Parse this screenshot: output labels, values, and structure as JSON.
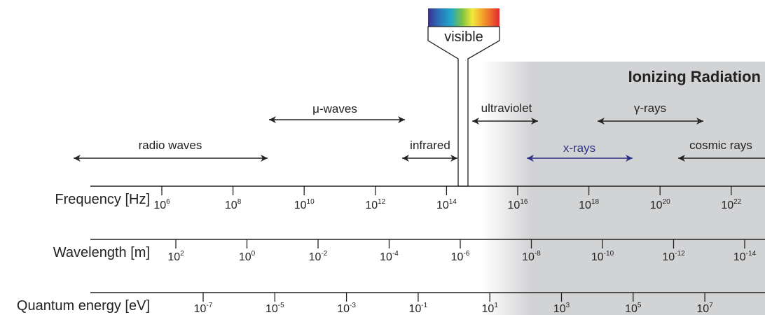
{
  "title": "Ionizing Radiation",
  "visible_label": "visible",
  "colors": {
    "ionizing_region": "#d2d3d5",
    "xray_arrow": "#2b3182",
    "axis": "#222222"
  },
  "scales": [
    {
      "label": "Frequency [Hz]",
      "ticks": [
        "6",
        "8",
        "10",
        "12",
        "14",
        "16",
        "18",
        "20",
        "22"
      ]
    },
    {
      "label": "Wavelength [m]",
      "ticks": [
        "2",
        "0",
        "-2",
        "-4",
        "-6",
        "-8",
        "-10",
        "-12",
        "-14"
      ]
    },
    {
      "label": "Quantum energy [eV]",
      "ticks": [
        "-7",
        "-5",
        "-3",
        "-1",
        "1",
        "3",
        "5",
        "7"
      ]
    }
  ],
  "tick_base": "10",
  "bands": [
    {
      "name": "radio waves"
    },
    {
      "name": "μ-waves"
    },
    {
      "name": "infrared"
    },
    {
      "name": "ultraviolet"
    },
    {
      "name": "γ-rays"
    },
    {
      "name": "x-rays"
    },
    {
      "name": "cosmic rays"
    }
  ]
}
